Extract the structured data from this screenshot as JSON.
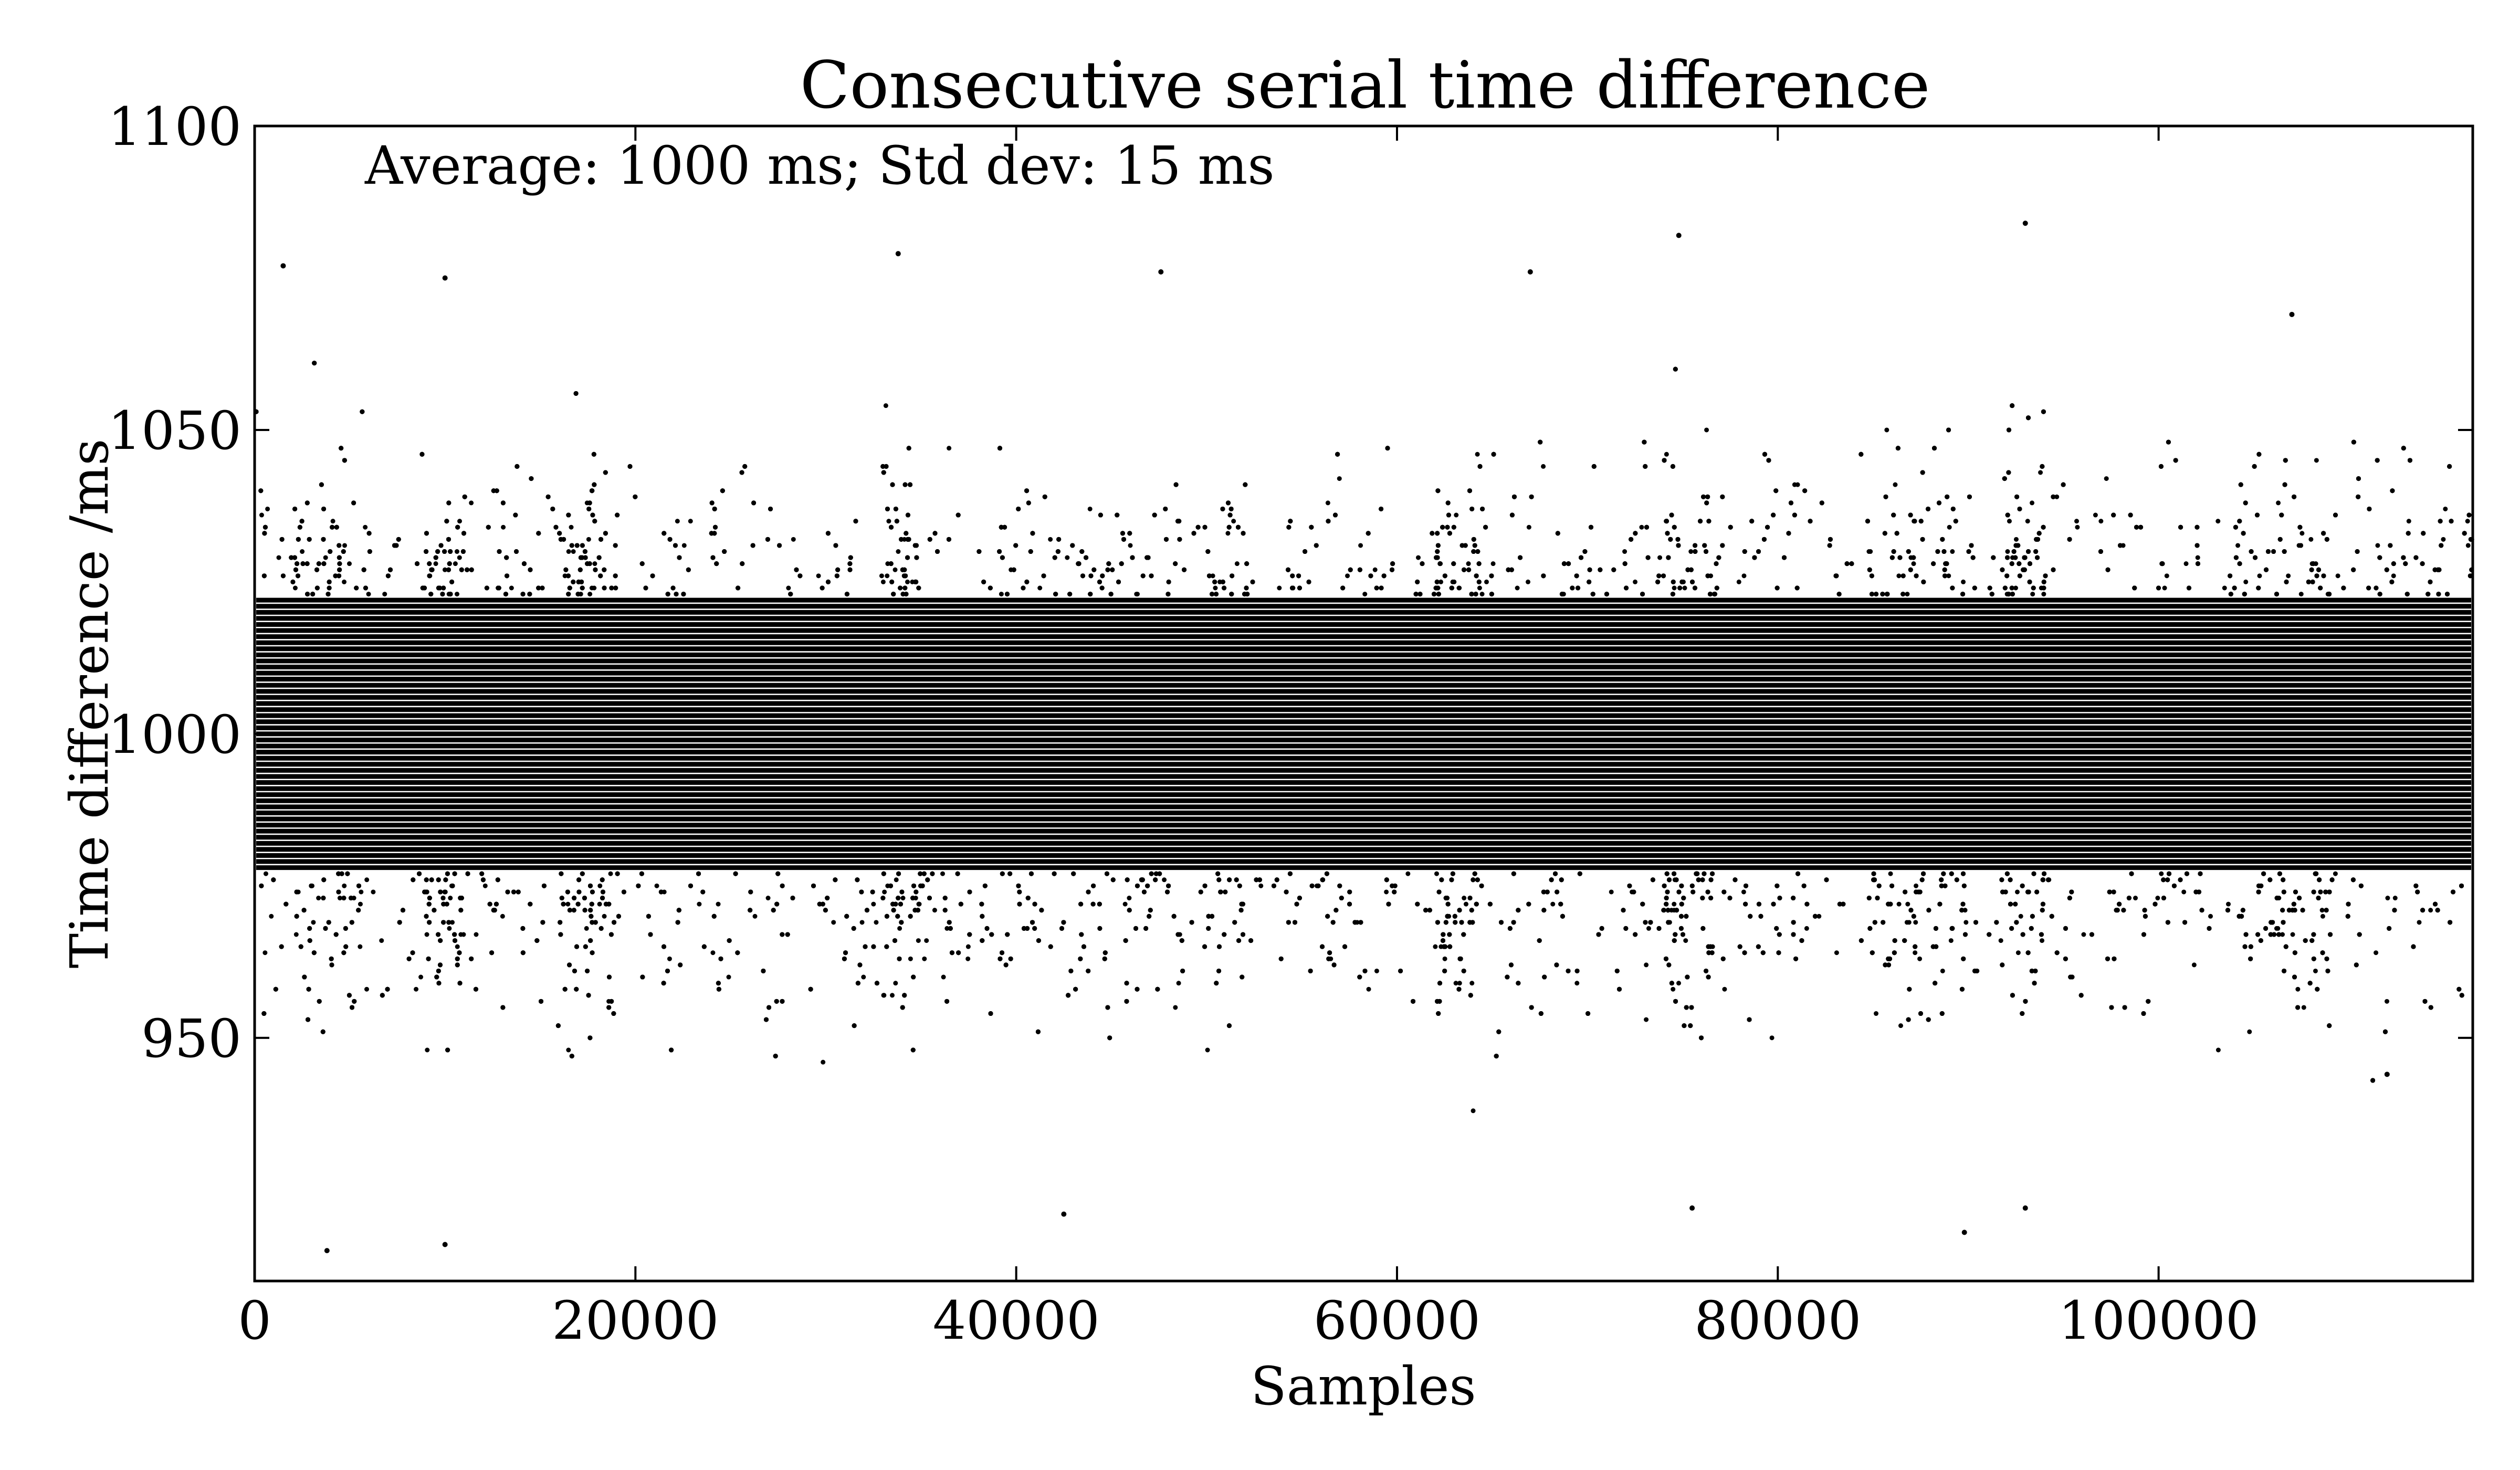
{
  "chart_data": {
    "type": "scatter",
    "title": "Consecutive serial time difference",
    "xlabel": "Samples",
    "ylabel": "Time difference /ms",
    "annotation": "Average: 1000 ms; Std dev: 15 ms",
    "xlim": [
      0,
      116500
    ],
    "ylim": [
      910,
      1100
    ],
    "xticks": [
      0,
      20000,
      40000,
      60000,
      80000,
      100000
    ],
    "xtick_labels": [
      "0",
      "20000",
      "40000",
      "60000",
      "80000",
      "100000"
    ],
    "yticks": [
      950,
      1000,
      1050,
      1100
    ],
    "ytick_labels": [
      "950",
      "1000",
      "1050",
      "1100"
    ],
    "grid": false,
    "legend": "none",
    "marker_color": "#000000",
    "series": [
      {
        "approx_mean": 1000,
        "approx_std": 15,
        "dense_band": [
          978,
          1022
        ],
        "approx_sample_count": 116500,
        "representative_outliers": [
          {
            "x": 1500,
            "y": 1077
          },
          {
            "x": 3800,
            "y": 915
          },
          {
            "x": 10000,
            "y": 1075
          },
          {
            "x": 10000,
            "y": 916
          },
          {
            "x": 33800,
            "y": 1079
          },
          {
            "x": 42500,
            "y": 921
          },
          {
            "x": 47600,
            "y": 1076
          },
          {
            "x": 67000,
            "y": 1076
          },
          {
            "x": 74800,
            "y": 1082
          },
          {
            "x": 75500,
            "y": 922
          },
          {
            "x": 89800,
            "y": 918
          },
          {
            "x": 93000,
            "y": 1084
          },
          {
            "x": 93000,
            "y": 922
          },
          {
            "x": 107000,
            "y": 1069
          },
          {
            "x": 112000,
            "y": 944
          }
        ]
      }
    ]
  }
}
